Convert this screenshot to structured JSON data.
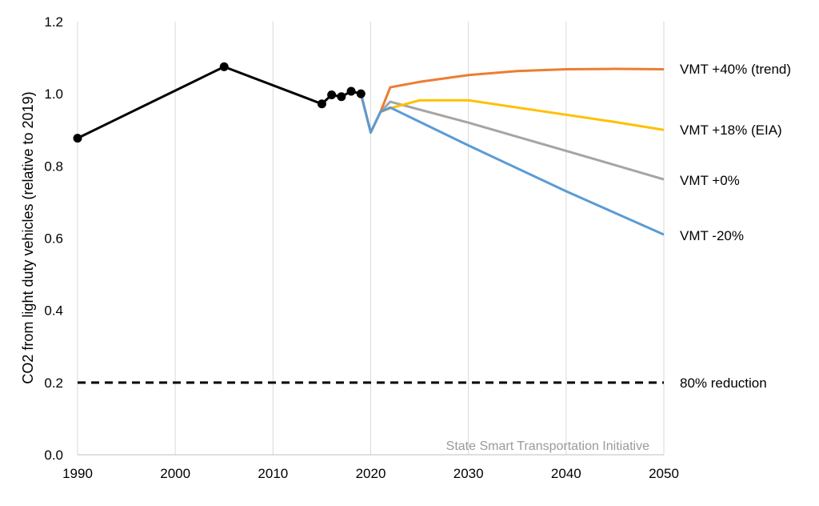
{
  "chart_data": {
    "type": "line",
    "title": "",
    "xlabel": "",
    "ylabel": "CO2 from light duty vehicles (relative to 2019)",
    "xlim": [
      1990,
      2050
    ],
    "ylim": [
      0,
      1.2
    ],
    "x_ticks": [
      "1990",
      "2000",
      "2010",
      "2020",
      "2030",
      "2040",
      "2050"
    ],
    "y_ticks": [
      "0.0",
      "0.2",
      "0.4",
      "0.6",
      "0.8",
      "1.0",
      "1.2"
    ],
    "grid": "vertical",
    "legend": "none",
    "watermark": "State Smart Transportation Initiative",
    "historical": {
      "color": "#000000",
      "points": [
        [
          1990,
          0.877
        ],
        [
          2005,
          1.075
        ],
        [
          2015,
          0.972
        ],
        [
          2016,
          0.997
        ],
        [
          2017,
          0.992
        ],
        [
          2018,
          1.007
        ],
        [
          2019,
          1.0
        ]
      ]
    },
    "series": [
      {
        "name": "VMT +40% (trend)",
        "color": "#ED7D31",
        "points": [
          [
            2019,
            1.0
          ],
          [
            2020,
            0.893
          ],
          [
            2021,
            0.95
          ],
          [
            2022,
            1.018
          ],
          [
            2025,
            1.033
          ],
          [
            2030,
            1.052
          ],
          [
            2035,
            1.063
          ],
          [
            2040,
            1.068
          ],
          [
            2045,
            1.069
          ],
          [
            2050,
            1.068
          ]
        ]
      },
      {
        "name": "VMT +18% (EIA)",
        "color": "#FFC000",
        "points": [
          [
            2019,
            1.0
          ],
          [
            2020,
            0.893
          ],
          [
            2021,
            0.95
          ],
          [
            2022,
            0.96
          ],
          [
            2025,
            0.982
          ],
          [
            2030,
            0.982
          ],
          [
            2035,
            0.962
          ],
          [
            2040,
            0.942
          ],
          [
            2045,
            0.922
          ],
          [
            2050,
            0.9
          ]
        ]
      },
      {
        "name": "VMT +0%",
        "color": "#A5A5A5",
        "points": [
          [
            2019,
            1.0
          ],
          [
            2020,
            0.893
          ],
          [
            2021,
            0.95
          ],
          [
            2022,
            0.978
          ],
          [
            2030,
            0.92
          ],
          [
            2040,
            0.842
          ],
          [
            2050,
            0.763
          ]
        ]
      },
      {
        "name": "VMT -20%",
        "color": "#5B9BD5",
        "points": [
          [
            2019,
            1.0
          ],
          [
            2020,
            0.893
          ],
          [
            2021,
            0.95
          ],
          [
            2022,
            0.962
          ],
          [
            2030,
            0.857
          ],
          [
            2040,
            0.73
          ],
          [
            2050,
            0.61
          ]
        ]
      }
    ],
    "reference_line": {
      "name": "80% reduction",
      "value": 0.2,
      "color": "#000000",
      "style": "dashed"
    }
  }
}
